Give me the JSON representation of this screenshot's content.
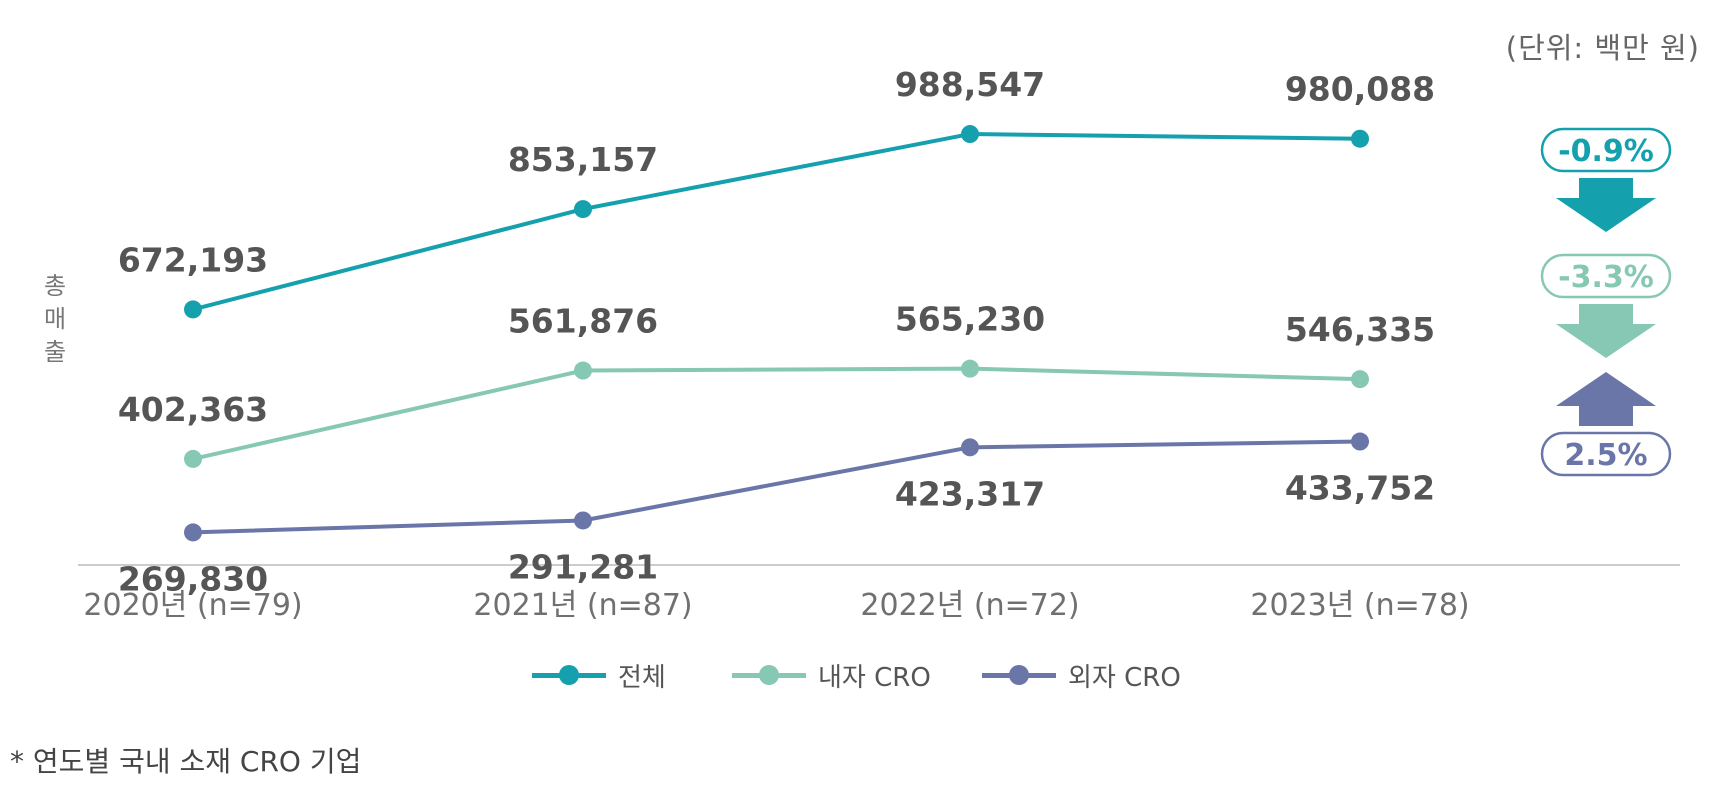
{
  "chart_data": {
    "type": "line",
    "unit_note": "(단위: 백만 원)",
    "ylabel": "총매출",
    "ylabel_chars": [
      "총",
      "매",
      "출"
    ],
    "categories": [
      "2020년 (n=79)",
      "2021년 (n=87)",
      "2022년 (n=72)",
      "2023년 (n=78)"
    ],
    "ylim": [
      220000,
      1050000
    ],
    "series": [
      {
        "name": "전체",
        "color": "#15A0AE",
        "values": [
          672193,
          853157,
          988547,
          980088
        ],
        "labels": [
          "672,193",
          "853,157",
          "988,547",
          "980,088"
        ],
        "label_pos": "above",
        "change": "-0.9%",
        "direction": "down"
      },
      {
        "name": "내자 CRO",
        "color": "#86C8B4",
        "values": [
          402363,
          561876,
          565230,
          546335
        ],
        "labels": [
          "402,363",
          "561,876",
          "565,230",
          "546,335"
        ],
        "label_pos": "above",
        "change": "-3.3%",
        "direction": "down"
      },
      {
        "name": "외자 CRO",
        "color": "#6A76A8",
        "values": [
          269830,
          291281,
          423317,
          433752
        ],
        "labels": [
          "269,830",
          "291,281",
          "423,317",
          "433,752"
        ],
        "label_pos": "below",
        "change": "2.5%",
        "direction": "up"
      }
    ],
    "legend_position": "bottom-center",
    "footnote": "*  연도별 국내 소재 CRO 기업"
  }
}
